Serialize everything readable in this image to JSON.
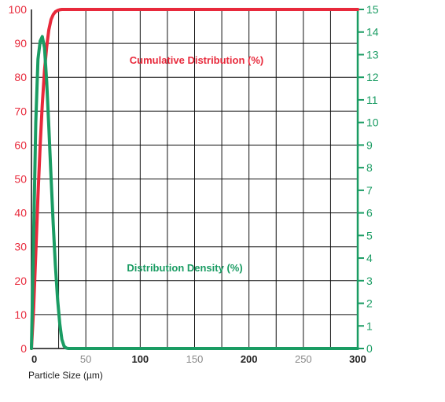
{
  "chart_data": {
    "type": "line",
    "xlabel": "Particle Size  (µm)",
    "xlim": [
      0,
      300
    ],
    "x_ticks": [
      "0",
      "50",
      "100",
      "150",
      "200",
      "250",
      "300"
    ],
    "y_left": {
      "lim": [
        0,
        100
      ],
      "ticks": [
        "0",
        "10",
        "20",
        "30",
        "40",
        "50",
        "60",
        "70",
        "80",
        "90",
        "100"
      ],
      "color": "#e8293b"
    },
    "y_right": {
      "lim": [
        0,
        15
      ],
      "ticks": [
        "0",
        "1",
        "2",
        "3",
        "4",
        "5",
        "6",
        "7",
        "8",
        "9",
        "10",
        "11",
        "12",
        "13",
        "14",
        "15"
      ],
      "color": "#1a9c63"
    },
    "grid": true,
    "series": [
      {
        "name": "Cumulative Distribution (%)",
        "axis": "left",
        "color": "#e8293b",
        "x": [
          0,
          2,
          4,
          6,
          8,
          10,
          12,
          14,
          16,
          18,
          20,
          22,
          24,
          26,
          28,
          30,
          40,
          100,
          200,
          300
        ],
        "y": [
          0,
          12,
          28,
          45,
          60,
          72,
          82,
          89,
          94,
          97,
          98.5,
          99.3,
          99.7,
          99.9,
          100,
          100,
          100,
          100,
          100,
          100
        ]
      },
      {
        "name": "Distribution Density (%)",
        "axis": "right",
        "color": "#1a9c63",
        "x": [
          0,
          2,
          4,
          6,
          8,
          10,
          12,
          14,
          16,
          18,
          20,
          22,
          24,
          26,
          28,
          30,
          32,
          34,
          36,
          40,
          100,
          200,
          300
        ],
        "y": [
          0,
          5,
          10,
          12.8,
          13.6,
          13.8,
          13.3,
          11.8,
          9.8,
          7.6,
          5.5,
          3.7,
          2.2,
          1.1,
          0.4,
          0.1,
          0.02,
          0,
          0,
          0,
          0,
          0,
          0
        ]
      }
    ]
  }
}
